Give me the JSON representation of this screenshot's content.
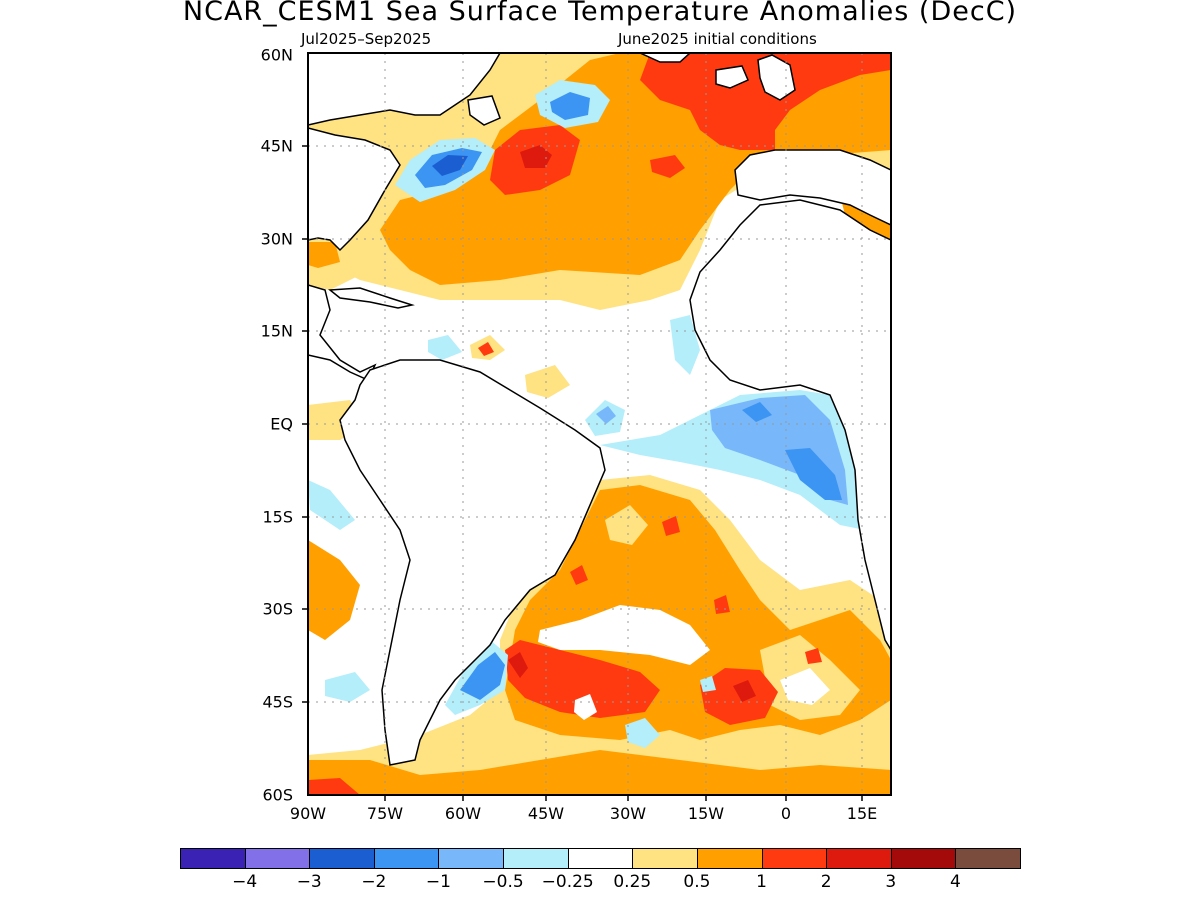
{
  "title": "NCAR_CESM1 Sea Surface Temperature Anomalies (DecC)",
  "period": "Jul2025–Sep2025",
  "init": "June2025 initial conditions",
  "lat_labels": [
    "60N",
    "45N",
    "30N",
    "15N",
    "EQ",
    "15S",
    "30S",
    "45S",
    "60S"
  ],
  "lon_labels": [
    "90W",
    "75W",
    "60W",
    "45W",
    "30W",
    "15W",
    "0",
    "15E"
  ],
  "colorbar": {
    "colors": [
      "#3a22b4",
      "#8270e8",
      "#1b5ed1",
      "#3c94f3",
      "#78b7fa",
      "#b3eefa",
      "#ffffff",
      "#ffe281",
      "#ffa000",
      "#ff3a10",
      "#de1a0e",
      "#a50a0a",
      "#7a4c3e"
    ],
    "labels": [
      "−4",
      "−3",
      "−2",
      "−1",
      "−0.5",
      "−0.25",
      "0.25",
      "0.5",
      "1",
      "2",
      "3",
      "4"
    ]
  }
}
